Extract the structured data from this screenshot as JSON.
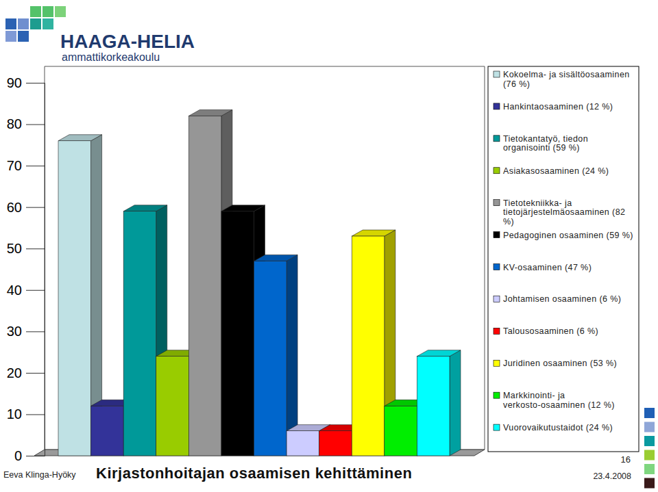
{
  "chart_data": {
    "type": "bar",
    "title": "Kirjastonhoitajan osaamisen kehittäminen",
    "annotations": [
      "HAAGA-HELIA",
      "ammattikorkeakoulu",
      "Eeva Klinga-Hyöky",
      "16",
      "23.4.2008"
    ],
    "categories": [
      null
    ],
    "series": [
      {
        "name": "Kokoelma- ja sisältöosaaminen (76 %)",
        "color": "#bfe1e4",
        "values": [
          76
        ]
      },
      {
        "name": "Hankintaosaaminen (12 %)",
        "color": "#333399",
        "values": [
          12
        ]
      },
      {
        "name": "Tietokantatyö, tiedon organisointi (59 %)",
        "color": "#009999",
        "values": [
          59
        ]
      },
      {
        "name": "Asiakasosaaminen (24 %)",
        "color": "#99cc00",
        "values": [
          24
        ]
      },
      {
        "name": "Tietotekniikka- ja tietojärjestelmäosaaminen (82 %)",
        "color": "#969696",
        "values": [
          82
        ]
      },
      {
        "name": "Pedagoginen osaaminen (59 %)",
        "color": "#000000",
        "values": [
          59
        ]
      },
      {
        "name": "KV-osaaminen (47 %)",
        "color": "#0066cc",
        "values": [
          47
        ]
      },
      {
        "name": "Johtamisen osaaminen (6 %)",
        "color": "#ccccff",
        "values": [
          6
        ]
      },
      {
        "name": "Talousosaaminen (6 %)",
        "color": "#ff0000",
        "values": [
          6
        ]
      },
      {
        "name": "Juridinen osaaminen (53 %)",
        "color": "#ffff00",
        "values": [
          53
        ]
      },
      {
        "name": "Markkinointi- ja verkosto-osaaminen (12 %)",
        "color": "#00ee00",
        "values": [
          12
        ]
      },
      {
        "name": "Vuorovaikutustaidot (24 %)",
        "color": "#00ffff",
        "values": [
          24
        ]
      }
    ],
    "ylim": [
      0,
      90
    ],
    "yticks": [
      0,
      10,
      20,
      30,
      40,
      50,
      60,
      70,
      80,
      90
    ],
    "grid": false,
    "legend": "right",
    "tick_labels": "y"
  }
}
